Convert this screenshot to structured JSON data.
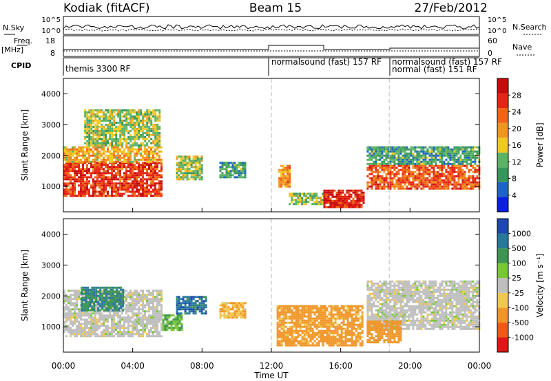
{
  "header": {
    "radar": "Kodiak (fitACF)",
    "beam": "Beam 15",
    "date": "27/Feb/2012"
  },
  "colors": {
    "power_scale": [
      "#0b1ee6",
      "#1e64c8",
      "#37965a",
      "#5ab464",
      "#f0c81e",
      "#f0961e",
      "#f06414",
      "#e62314",
      "#c80a0a"
    ],
    "velocity_scale": [
      "#e61414",
      "#f05a14",
      "#f09628",
      "#f0c850",
      "#bebebe",
      "#78c832",
      "#3c9650",
      "#28789b",
      "#1e46b4"
    ]
  },
  "top_panels": {
    "left_label1": "N.Sky",
    "right_label1": "N.Search",
    "noise_ticks": [
      "10^5",
      "10^0"
    ],
    "left_label2": "Freq.",
    "left_label2b": "[MHz]",
    "freq_ticks": [
      "18",
      "8"
    ],
    "right_label2": "Nave",
    "nave_ticks": [
      "60",
      "0"
    ],
    "cpid_label": "CPID",
    "cpid_segments": [
      "themis 3300 RF",
      "normalsound (fast) 157 RF",
      "normalsound (fast) 157 RF",
      "normal (fast) 151 RF"
    ]
  },
  "chart_data": [
    {
      "type": "heatmap",
      "title": "",
      "xlabel": "Time UT",
      "ylabel": "Slant Range [km]",
      "x_ticks": [
        "00:00",
        "04:00",
        "08:00",
        "12:00",
        "16:00",
        "20:00",
        "00:00"
      ],
      "y_ticks": [
        "1000",
        "2000",
        "3000",
        "4000"
      ],
      "xlim": [
        0,
        24
      ],
      "ylim": [
        180,
        4500
      ],
      "colorbar": {
        "label": "Power [dB]",
        "ticks": [
          "4",
          "8",
          "12",
          "16",
          "20",
          "24",
          "28"
        ],
        "range": [
          0,
          32
        ]
      },
      "regions": [
        {
          "t": [
            0.0,
            5.7
          ],
          "r": [
            700,
            1800
          ],
          "value": 26
        },
        {
          "t": [
            0.0,
            5.7
          ],
          "r": [
            1800,
            2300
          ],
          "value": 18
        },
        {
          "t": [
            1.2,
            5.5
          ],
          "r": [
            2300,
            3500
          ],
          "value": 14
        },
        {
          "t": [
            6.5,
            8.0
          ],
          "r": [
            1200,
            2000
          ],
          "value": 14
        },
        {
          "t": [
            9.0,
            10.5
          ],
          "r": [
            1300,
            1800
          ],
          "value": 10
        },
        {
          "t": [
            12.4,
            13.0
          ],
          "r": [
            1000,
            1700
          ],
          "value": 20
        },
        {
          "t": [
            13.0,
            15.0
          ],
          "r": [
            400,
            800
          ],
          "value": 14
        },
        {
          "t": [
            15.0,
            17.3
          ],
          "r": [
            350,
            900
          ],
          "value": 28
        },
        {
          "t": [
            17.5,
            24.0
          ],
          "r": [
            900,
            1700
          ],
          "value": 24
        },
        {
          "t": [
            17.5,
            24.0
          ],
          "r": [
            1700,
            2300
          ],
          "value": 10
        }
      ]
    },
    {
      "type": "heatmap",
      "title": "",
      "xlabel": "Time UT",
      "ylabel": "Slant Range [km]",
      "x_ticks": [
        "00:00",
        "04:00",
        "08:00",
        "12:00",
        "16:00",
        "20:00",
        "00:00"
      ],
      "y_ticks": [
        "1000",
        "2000",
        "3000",
        "4000"
      ],
      "xlim": [
        0,
        24
      ],
      "ylim": [
        180,
        4500
      ],
      "colorbar": {
        "label": "Velocity [m s⁻¹]",
        "ticks": [
          "1000",
          "500",
          "100",
          "25",
          "-25",
          "-100",
          "-500",
          "-1000"
        ]
      },
      "regions": [
        {
          "t": [
            0.0,
            5.7
          ],
          "r": [
            700,
            2200
          ],
          "value": 0
        },
        {
          "t": [
            1.0,
            3.5
          ],
          "r": [
            1500,
            2300
          ],
          "value": 500
        },
        {
          "t": [
            5.7,
            6.8
          ],
          "r": [
            900,
            1400
          ],
          "value": 100
        },
        {
          "t": [
            6.5,
            8.2
          ],
          "r": [
            1400,
            2000
          ],
          "value": 800
        },
        {
          "t": [
            9.0,
            10.5
          ],
          "r": [
            1300,
            1800
          ],
          "value": -100
        },
        {
          "t": [
            12.3,
            17.3
          ],
          "r": [
            400,
            1700
          ],
          "value": -200
        },
        {
          "t": [
            17.5,
            24.0
          ],
          "r": [
            900,
            2500
          ],
          "value": 0
        },
        {
          "t": [
            17.5,
            19.5
          ],
          "r": [
            500,
            1200
          ],
          "value": -300
        }
      ]
    }
  ]
}
